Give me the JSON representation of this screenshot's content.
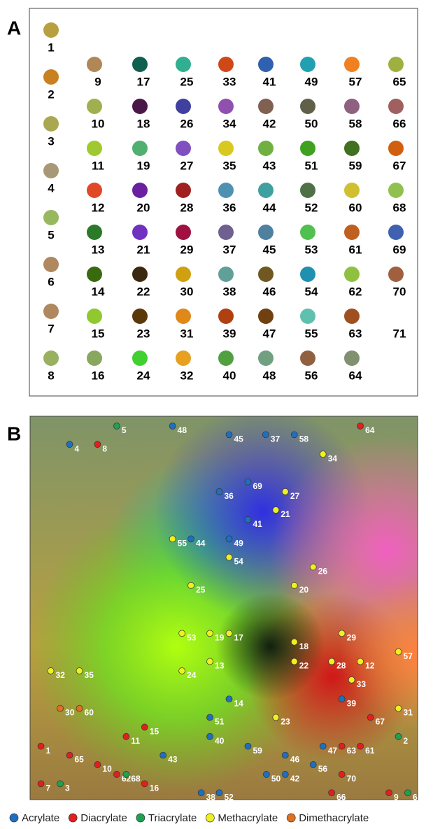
{
  "chart_data": [
    {
      "type": "spots",
      "title": "A",
      "labels": [
        "1",
        "2",
        "3",
        "4",
        "5",
        "6",
        "7",
        "8",
        "9",
        "10",
        "11",
        "12",
        "13",
        "14",
        "15",
        "16",
        "17",
        "18",
        "19",
        "20",
        "21",
        "22",
        "23",
        "24",
        "25",
        "26",
        "27",
        "28",
        "29",
        "30",
        "31",
        "32",
        "33",
        "34",
        "35",
        "36",
        "37",
        "38",
        "39",
        "40",
        "41",
        "42",
        "43",
        "44",
        "45",
        "46",
        "47",
        "48",
        "49",
        "50",
        "51",
        "52",
        "53",
        "54",
        "55",
        "56",
        "57",
        "58",
        "59",
        "60",
        "61",
        "62",
        "63",
        "64",
        "65",
        "66",
        "67",
        "68",
        "69",
        "70",
        "71"
      ],
      "colors": [
        "#b8a040",
        "#c88020",
        "#a8a850",
        "#a89878",
        "#98b860",
        "#b08860",
        "#b08860",
        "#98b060",
        "#b08858",
        "#a0b050",
        "#a0c830",
        "#e04828",
        "#2a7a2a",
        "#3a6a10",
        "#90c830",
        "#88a860",
        "#106050",
        "#4a1848",
        "#50b070",
        "#6a20a0",
        "#7030c0",
        "#3a2810",
        "#5a3808",
        "#40d030",
        "#30b090",
        "#4040a0",
        "#8050c0",
        "#a02020",
        "#a01040",
        "#d0a010",
        "#e08818",
        "#e8a020",
        "#d04818",
        "#9050b0",
        "#d8c820",
        "#5090b0",
        "#706090",
        "#60a098",
        "#b04010",
        "#50a040",
        "#3060b0",
        "#806050",
        "#70b040",
        "#40a0a0",
        "#5080a0",
        "#705820",
        "#704010",
        "#70a080",
        "#20a0b0",
        "#606048",
        "#40a020",
        "#507048",
        "#50c050",
        "#2090b0",
        "#60c0b0",
        "#906040",
        "#f08020",
        "#906080",
        "#407020",
        "#d0c030",
        "#c06020",
        "#90c040",
        "#a05020",
        "#809070",
        "#a0b040",
        "#a06060",
        "#d06010",
        "#90c050",
        "#4060b0",
        "#a06040",
        null
      ]
    },
    {
      "type": "scatter",
      "title": "B",
      "xlim": [
        0,
        100
      ],
      "ylim": [
        0,
        100
      ],
      "legend": "bottom",
      "series": [
        {
          "name": "Acrylate",
          "color": "#1f6fc0",
          "labels": [
            "4",
            "48",
            "45",
            "37",
            "58",
            "69",
            "36",
            "41",
            "44",
            "49",
            "14",
            "51",
            "40",
            "59",
            "43",
            "46",
            "47",
            "56",
            "39",
            "50",
            "42",
            "38",
            "52"
          ],
          "x": [
            9.0,
            36.3,
            51.3,
            61.0,
            68.6,
            56.3,
            48.7,
            56.3,
            41.2,
            51.3,
            51.3,
            46.2,
            46.2,
            56.3,
            33.8,
            66.2,
            76.2,
            73.6,
            81.2,
            61.2,
            66.2,
            43.9,
            48.7
          ],
          "y": [
            93.8,
            98.7,
            96.4,
            96.4,
            96.4,
            83.8,
            81.2,
            73.7,
            68.6,
            68.6,
            25.9,
            21.0,
            15.9,
            13.3,
            10.9,
            10.9,
            13.3,
            8.4,
            25.9,
            5.8,
            5.8,
            0.9,
            0.9
          ]
        },
        {
          "name": "Diacrylate",
          "color": "#e02020",
          "labels": [
            "8",
            "64",
            "15",
            "11",
            "1",
            "65",
            "10",
            "62",
            "16",
            "7",
            "67",
            "63",
            "61",
            "70",
            "66",
            "9"
          ],
          "x": [
            16.4,
            86.1,
            28.9,
            24.0,
            1.4,
            9.0,
            16.4,
            21.5,
            28.9,
            1.4,
            88.8,
            81.2,
            86.1,
            81.2,
            78.5,
            93.7
          ],
          "y": [
            93.8,
            98.7,
            18.4,
            15.9,
            13.3,
            10.9,
            8.4,
            5.8,
            3.3,
            3.3,
            21.0,
            13.3,
            13.3,
            5.8,
            0.9,
            0.9
          ]
        },
        {
          "name": "Triacrylate",
          "color": "#20a050",
          "labels": [
            "5",
            "68",
            "3",
            "2",
            "6"
          ],
          "x": [
            21.5,
            24.0,
            6.5,
            96.2,
            98.7
          ],
          "y": [
            98.7,
            5.8,
            3.3,
            15.9,
            0.9
          ]
        },
        {
          "name": "Methacrylate",
          "color": "#f0f020",
          "labels": [
            "34",
            "27",
            "21",
            "55",
            "54",
            "26",
            "25",
            "20",
            "53",
            "19",
            "17",
            "18",
            "29",
            "57",
            "13",
            "22",
            "28",
            "12",
            "24",
            "32",
            "35",
            "33",
            "31",
            "23"
          ],
          "x": [
            76.2,
            66.2,
            63.7,
            36.3,
            51.3,
            73.6,
            41.2,
            68.6,
            38.8,
            46.2,
            51.3,
            68.6,
            81.2,
            96.2,
            46.2,
            68.6,
            78.5,
            86.1,
            38.8,
            4.0,
            11.6,
            83.8,
            96.2,
            63.7
          ],
          "y": [
            91.2,
            81.2,
            76.3,
            68.6,
            63.7,
            61.1,
            56.2,
            56.2,
            43.4,
            43.4,
            43.4,
            41.1,
            43.4,
            38.5,
            35.9,
            35.9,
            35.9,
            35.9,
            33.4,
            33.4,
            33.4,
            31.0,
            23.4,
            21.0
          ]
        },
        {
          "name": "Dimethacrylate",
          "color": "#e07020",
          "labels": [
            "30",
            "60"
          ],
          "x": [
            6.5,
            11.6
          ],
          "y": [
            23.4,
            23.4
          ]
        }
      ]
    }
  ]
}
